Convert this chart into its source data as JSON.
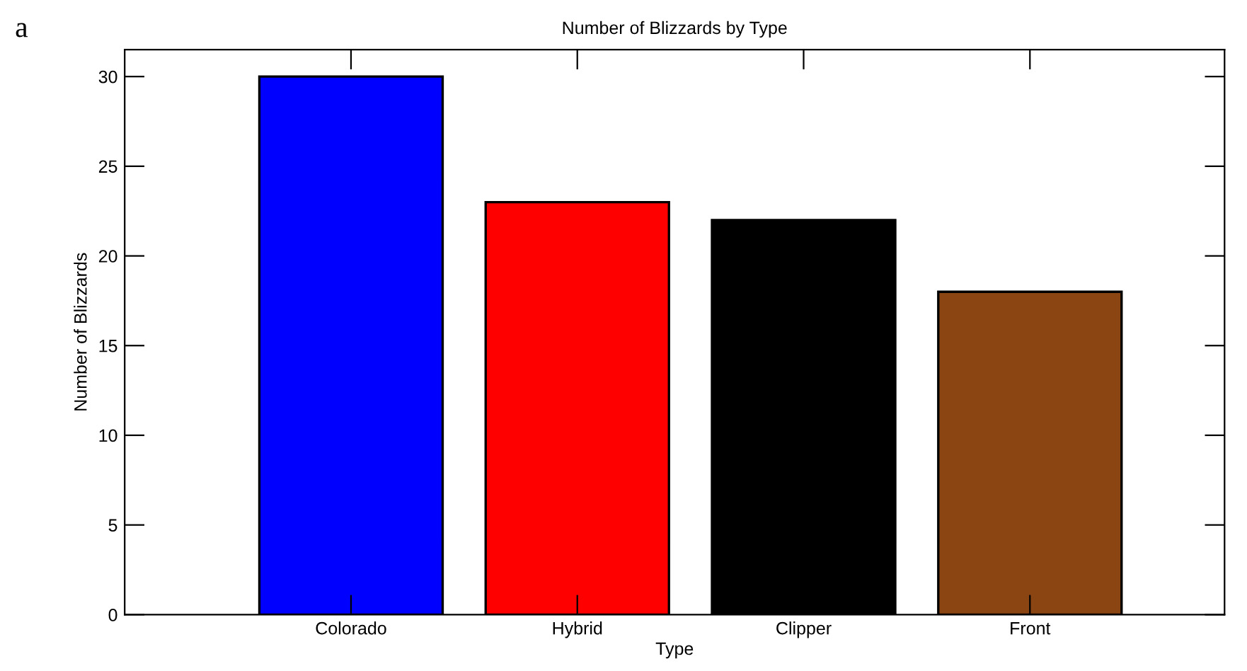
{
  "chart_data": {
    "type": "bar",
    "title": "Number of Blizzards by Type",
    "xlabel": "Type",
    "ylabel": "Number of Blizzards",
    "categories": [
      "Colorado",
      "Hybrid",
      "Clipper",
      "Front"
    ],
    "values": [
      30,
      23,
      22,
      18
    ],
    "colors": [
      "#0000ff",
      "#ff0000",
      "#000000",
      "#8b4513"
    ],
    "ylim": [
      0,
      31.5
    ],
    "yticks": [
      0,
      5,
      10,
      15,
      20,
      25,
      30
    ],
    "grid": false,
    "legend": false,
    "annotations": [
      "a"
    ]
  }
}
